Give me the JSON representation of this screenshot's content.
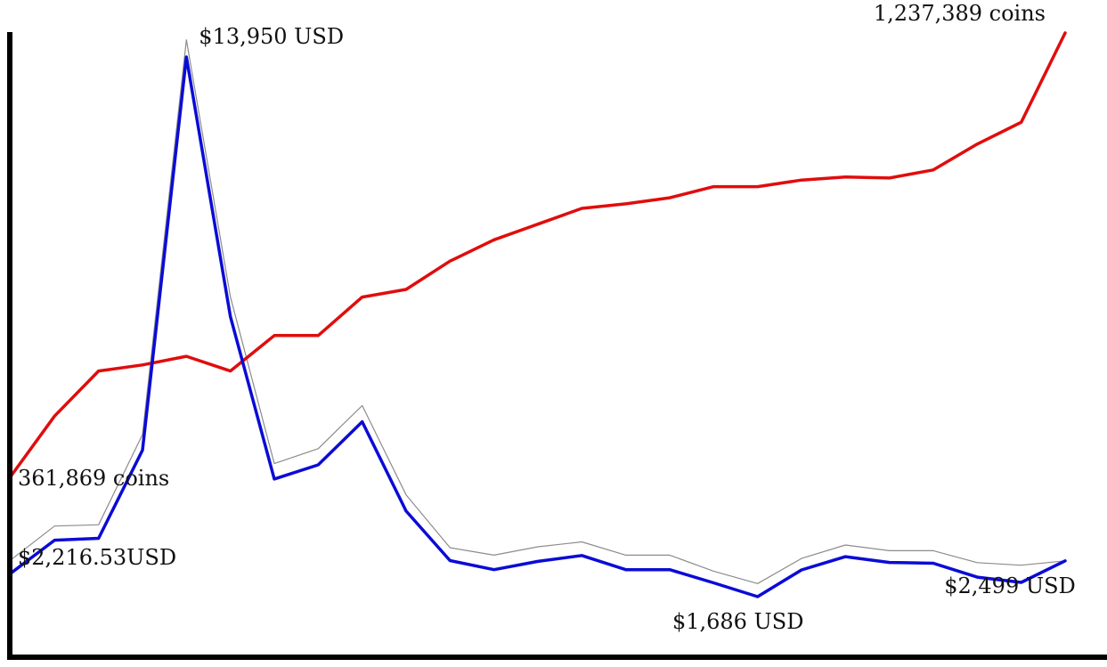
{
  "chart_data": {
    "type": "line",
    "title": "",
    "xlabel": "",
    "ylabel": "",
    "grid": false,
    "legend": "none",
    "x": [
      1,
      2,
      3,
      4,
      5,
      6,
      7,
      8,
      9,
      10,
      11,
      12,
      13,
      14,
      15,
      16,
      17,
      18,
      19,
      20,
      21,
      22,
      23,
      24,
      25
    ],
    "series": [
      {
        "key": "coins",
        "color": "#e00d0d",
        "ylim": [
          361869,
          1237389
        ],
        "values": [
          361869,
          481000,
          570000,
          582000,
          599000,
          570000,
          640000,
          640000,
          716000,
          731000,
          787000,
          829000,
          860000,
          891000,
          900000,
          912000,
          934000,
          934000,
          947000,
          953000,
          951000,
          967000,
          1018000,
          1061000,
          1237389
        ]
      },
      {
        "key": "usd",
        "color": "#0b0bd6",
        "ylim": [
          1686,
          13950
        ],
        "values": [
          2216.53,
          2970,
          3012,
          5016,
          13950,
          8050,
          4360,
          4681,
          5660,
          3630,
          2505,
          2300,
          2487,
          2620,
          2300,
          2300,
          2000,
          1686,
          2293,
          2595,
          2464,
          2445,
          2130,
          2010,
          2499
        ]
      },
      {
        "key": "usd-reference",
        "color": "#8c8c8c",
        "ylim": [
          1686,
          13950
        ],
        "values": [
          2520,
          3290,
          3320,
          5370,
          14340,
          8500,
          4710,
          5050,
          6030,
          4000,
          2800,
          2630,
          2820,
          2930,
          2630,
          2630,
          2265,
          1984,
          2555,
          2860,
          2730,
          2730,
          2460,
          2400,
          2500
        ]
      }
    ],
    "annotations": [
      {
        "text": "$13,950 USD",
        "series": "usd",
        "index": 4,
        "anchor": "start"
      },
      {
        "text": "361,869 coins",
        "series": "coins",
        "index": 0,
        "anchor": "start"
      },
      {
        "text": "$2,216.53USD",
        "series": "usd",
        "index": 0,
        "anchor": "start"
      },
      {
        "text": "$1,686 USD",
        "series": "usd",
        "index": 17,
        "anchor": "middle"
      },
      {
        "text": "$2,499 USD",
        "series": "usd",
        "index": 24,
        "anchor": "middle"
      },
      {
        "text": "1,237,389 coins",
        "series": "coins",
        "index": 24,
        "anchor": "end"
      }
    ]
  }
}
